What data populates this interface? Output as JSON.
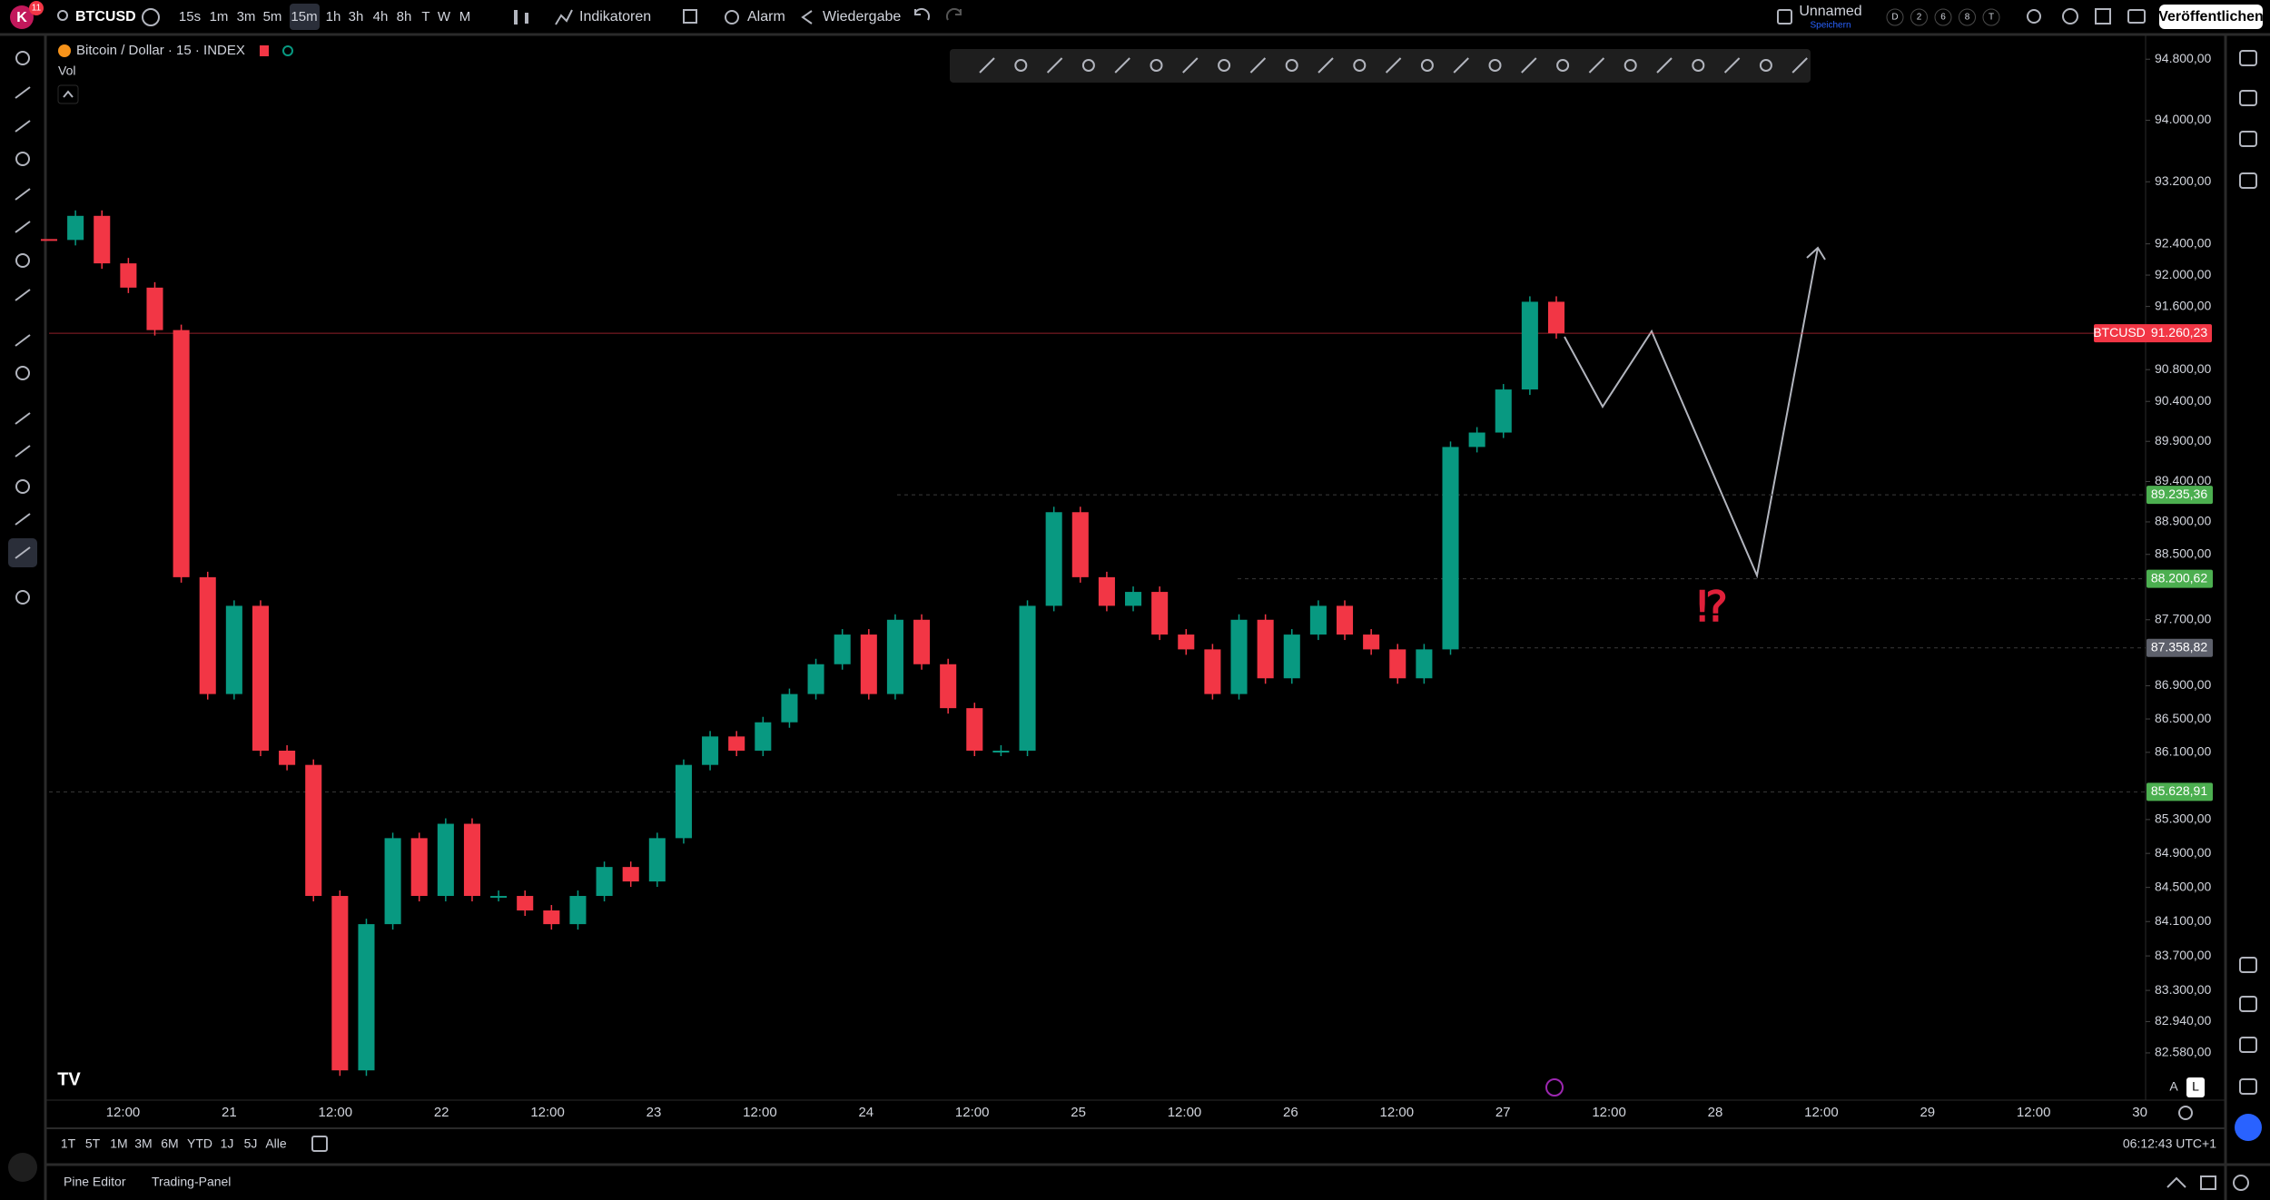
{
  "top_toolbar": {
    "avatar": "K",
    "badge": "11",
    "symbol": "BTCUSD",
    "timeframes": [
      "15s",
      "1m",
      "3m",
      "5m",
      "15m",
      "1h",
      "3h",
      "4h",
      "8h",
      "T",
      "W",
      "M"
    ],
    "indicators": "Indikatoren",
    "alert": "Alarm",
    "replay": "Wiedergabe",
    "layout_name": "Unnamed",
    "save": "Speichern",
    "layout_badges": [
      "D",
      "2",
      "6",
      "8",
      "T"
    ],
    "publish": "Veröffentlichen"
  },
  "legend": {
    "symbol_title": "Bitcoin / Dollar · 15 · INDEX",
    "volume": "Vol"
  },
  "chart_data": {
    "type": "candlestick",
    "log_scale": true,
    "up_color": "#089981",
    "down_color": "#f23645",
    "values": [
      92450,
      92760,
      92150,
      91840,
      91300,
      88220,
      86800,
      87870,
      86120,
      85950,
      84400,
      82380,
      84070,
      85080,
      84400,
      85250,
      84400,
      84400,
      84230,
      84070,
      84400,
      84740,
      84570,
      85080,
      85950,
      86290,
      86120,
      86460,
      86800,
      87160,
      87520,
      86800,
      87700,
      87160,
      86630,
      86120,
      86120,
      87870,
      89020,
      88220,
      87870,
      88040,
      87520,
      87340,
      86800,
      87700,
      86990,
      87520,
      87870,
      87520,
      87340,
      86990,
      87340,
      89830,
      90010,
      90550,
      91660,
      91260
    ],
    "ylim": [
      82040,
      95090
    ],
    "yticks": [
      {
        "value": 94800,
        "label": "94.800,00"
      },
      {
        "value": 94000,
        "label": "94.000,00"
      },
      {
        "value": 93200,
        "label": "93.200,00"
      },
      {
        "value": 92400,
        "label": "92.400,00"
      },
      {
        "value": 92000,
        "label": "92.000,00"
      },
      {
        "value": 91600,
        "label": "91.600,00"
      },
      {
        "value": 90800,
        "label": "90.800,00"
      },
      {
        "value": 90400,
        "label": "90.400,00"
      },
      {
        "value": 89900,
        "label": "89.900,00"
      },
      {
        "value": 89400,
        "label": "89.400,00"
      },
      {
        "value": 88900,
        "label": "88.900,00"
      },
      {
        "value": 88500,
        "label": "88.500,00"
      },
      {
        "value": 87700,
        "label": "87.700,00"
      },
      {
        "value": 86900,
        "label": "86.900,00"
      },
      {
        "value": 86500,
        "label": "86.500,00"
      },
      {
        "value": 86100,
        "label": "86.100,00"
      },
      {
        "value": 85300,
        "label": "85.300,00"
      },
      {
        "value": 84900,
        "label": "84.900,00"
      },
      {
        "value": 84500,
        "label": "84.500,00"
      },
      {
        "value": 84100,
        "label": "84.100,00"
      },
      {
        "value": 83700,
        "label": "83.700,00"
      },
      {
        "value": 83300,
        "label": "83.300,00"
      },
      {
        "value": 82940,
        "label": "82.940,00"
      },
      {
        "value": 82580,
        "label": "82.580,00"
      }
    ],
    "time_labels": [
      "12:00",
      "21",
      "12:00",
      "22",
      "12:00",
      "23",
      "12:00",
      "24",
      "12:00",
      "25",
      "12:00",
      "26",
      "12:00",
      "27",
      "12:00",
      "28",
      "12:00",
      "29",
      "12:00",
      "30"
    ],
    "last_price": {
      "name": "BTCUSD",
      "value": 91260.23,
      "label": "91.260,23",
      "color": "#f23645"
    },
    "price_levels": [
      {
        "value": 89235.36,
        "label": "89.235,36",
        "color": "#4caf50"
      },
      {
        "value": 88200.62,
        "label": "88.200,62",
        "color": "#4caf50"
      },
      {
        "value": 87358.82,
        "label": "87.358,82",
        "color": "#5d606b"
      },
      {
        "value": 85628.91,
        "label": "85.628,91",
        "color": "#4caf50"
      }
    ],
    "annotation": "⁉"
  },
  "price_axis_buttons": [
    "A",
    "L"
  ],
  "range_bar": {
    "ranges": [
      "1T",
      "5T",
      "1M",
      "3M",
      "6M",
      "YTD",
      "1J",
      "5J",
      "Alle"
    ],
    "clock": "06:12:43 UTC+1"
  },
  "bottom_panel": {
    "tabs": [
      "Pine Editor",
      "Trading-Panel"
    ]
  }
}
